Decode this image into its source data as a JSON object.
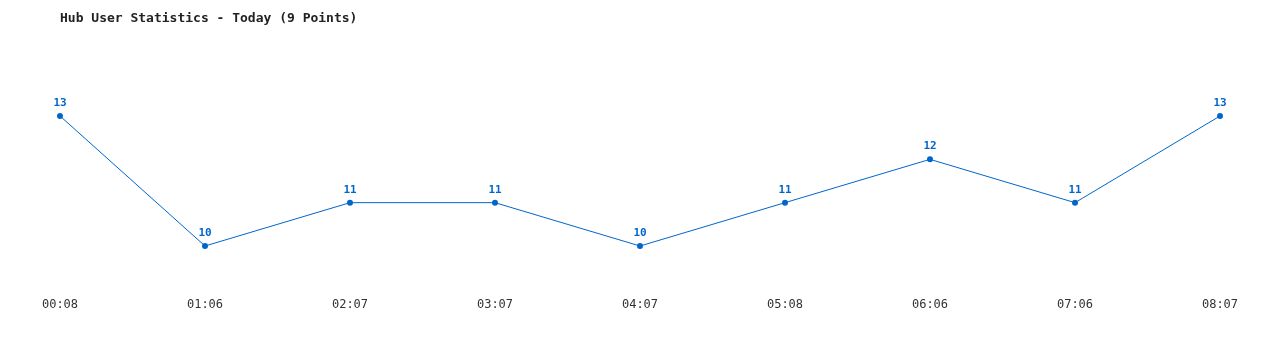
{
  "chart_data": {
    "type": "line",
    "title": "Hub User Statistics - Today (9 Points)",
    "categories": [
      "00:08",
      "01:06",
      "02:07",
      "03:07",
      "04:07",
      "05:08",
      "06:06",
      "07:06",
      "08:07"
    ],
    "values": [
      13,
      10,
      11,
      11,
      10,
      11,
      12,
      11,
      13
    ],
    "color": "#0066cc",
    "marker": "circle",
    "data_labels": true
  }
}
